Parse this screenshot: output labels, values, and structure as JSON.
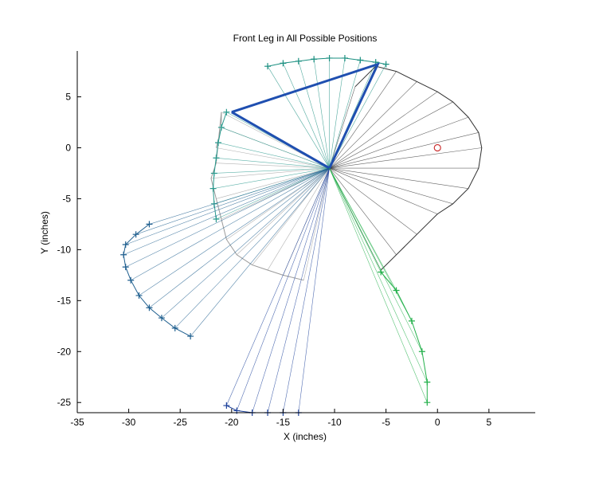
{
  "chart_data": {
    "type": "line",
    "title": "Front Leg in All Possible Positions",
    "xlabel": "X (inches)",
    "ylabel": "Y (inches)",
    "xlim": [
      -35,
      9.5
    ],
    "ylim": [
      -26,
      9.5
    ],
    "x_ticks": [
      -35,
      -30,
      -25,
      -20,
      -15,
      -10,
      -5,
      0,
      5
    ],
    "x_tick_labels": [
      "-35",
      "-30",
      "-25",
      "-20",
      "-15",
      "-10",
      "-5",
      "0",
      "5"
    ],
    "y_ticks": [
      -25,
      -20,
      -15,
      -10,
      -5,
      0,
      5
    ],
    "y_tick_labels": [
      "-25",
      "-20",
      "-15",
      "-10",
      "-5",
      "0",
      "5"
    ],
    "grid": false,
    "legend": "none",
    "hip_joint": [
      -10.5,
      -2
    ],
    "base_point": [
      0,
      0
    ],
    "series": [
      {
        "color": "#9a9a9a",
        "marker": "none",
        "points": [
          [
            -21.5,
            0
          ],
          [
            -21,
            2
          ],
          [
            -21,
            3.5
          ],
          [
            -21.5,
            -1.5
          ],
          [
            -22,
            -3
          ],
          [
            -21.5,
            -5
          ],
          [
            -21,
            -7
          ],
          [
            -20.5,
            -9
          ],
          [
            -19.5,
            -10.5
          ],
          [
            -18,
            -11.5
          ],
          [
            -16.5,
            -12
          ],
          [
            -15,
            -12.5
          ],
          [
            -13,
            -13
          ]
        ]
      },
      {
        "color": "#303030",
        "marker": "none",
        "points": [
          [
            -8,
            6
          ],
          [
            -6,
            8
          ],
          [
            -4,
            7.5
          ],
          [
            -2,
            6.5
          ],
          [
            0,
            5.5
          ],
          [
            1.5,
            4.5
          ],
          [
            3,
            3
          ],
          [
            4,
            1.5
          ],
          [
            4.3,
            0
          ],
          [
            4,
            -2
          ],
          [
            3,
            -4
          ],
          [
            1.5,
            -5.5
          ],
          [
            0,
            -6.5
          ],
          [
            -2,
            -8.5
          ],
          [
            -4,
            -10.5
          ],
          [
            -5.5,
            -12
          ]
        ]
      },
      {
        "color": "#1a8f80",
        "marker": "+",
        "points": [
          [
            -16.5,
            8
          ],
          [
            -15,
            8.3
          ],
          [
            -13.5,
            8.5
          ],
          [
            -12,
            8.7
          ],
          [
            -10.5,
            8.8
          ],
          [
            -9,
            8.8
          ],
          [
            -7.5,
            8.6
          ],
          [
            -6,
            8.4
          ],
          [
            -5,
            8.2
          ]
        ]
      },
      {
        "color": "#2a9a8e",
        "marker": "+",
        "points": [
          [
            -20.5,
            3.5
          ],
          [
            -21,
            2
          ],
          [
            -21.3,
            0.5
          ],
          [
            -21.5,
            -1
          ],
          [
            -21.7,
            -2.5
          ],
          [
            -21.8,
            -4
          ],
          [
            -21.7,
            -5.5
          ],
          [
            -21.5,
            -7
          ]
        ]
      },
      {
        "color": "#1f4fb0",
        "marker": "none",
        "points": [
          [
            -20,
            3.5
          ],
          [
            -5.8,
            8.2
          ],
          [
            -10.5,
            -2
          ],
          [
            -20,
            3.5
          ]
        ]
      },
      {
        "color": "#1f5f8f",
        "marker": "+",
        "points": [
          [
            -28,
            -7.5
          ],
          [
            -29.3,
            -8.5
          ],
          [
            -30.3,
            -9.5
          ],
          [
            -30.5,
            -10.5
          ],
          [
            -30.3,
            -11.7
          ],
          [
            -29.8,
            -13
          ],
          [
            -29,
            -14.5
          ],
          [
            -28,
            -15.7
          ],
          [
            -26.8,
            -16.7
          ],
          [
            -25.5,
            -17.7
          ],
          [
            -24,
            -18.5
          ]
        ]
      },
      {
        "color": "#1a3f9a",
        "marker": "+",
        "points": [
          [
            -20.5,
            -25.3
          ],
          [
            -19.5,
            -25.8
          ],
          [
            -18,
            -26
          ],
          [
            -16.5,
            -26
          ],
          [
            -15,
            -26
          ],
          [
            -13.5,
            -26
          ]
        ]
      },
      {
        "color": "#22b04a",
        "marker": "+",
        "points": [
          [
            -5.5,
            -12.2
          ],
          [
            -4,
            -14
          ],
          [
            -2.5,
            -17
          ],
          [
            -1.5,
            -20
          ],
          [
            -1,
            -23
          ],
          [
            -1,
            -25
          ]
        ]
      }
    ]
  }
}
